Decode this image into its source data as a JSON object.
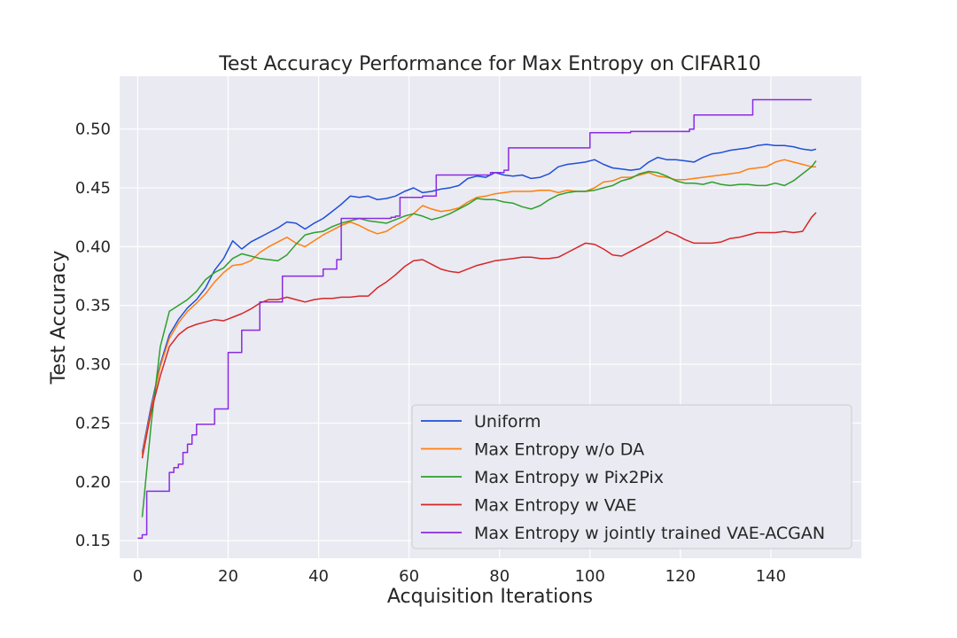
{
  "chart_data": {
    "type": "line",
    "title": "Test Accuracy Performance for Max Entropy on CIFAR10",
    "xlabel": "Acquisition Iterations",
    "ylabel": "Test Accuracy",
    "xlim": [
      -4,
      160
    ],
    "ylim": [
      0.135,
      0.545
    ],
    "xticks": [
      0,
      20,
      40,
      60,
      80,
      100,
      120,
      140
    ],
    "yticks": [
      0.15,
      0.2,
      0.25,
      0.3,
      0.35,
      0.4,
      0.45,
      0.5
    ],
    "grid": true,
    "background": "#eaeaf2",
    "legend_position": "lower-right",
    "series": [
      {
        "name": "Uniform",
        "color": "#1f4fd8",
        "step": false,
        "x": [
          1,
          3,
          5,
          7,
          9,
          11,
          13,
          15,
          17,
          19,
          21,
          23,
          25,
          27,
          29,
          31,
          33,
          35,
          37,
          39,
          41,
          43,
          45,
          47,
          49,
          51,
          53,
          55,
          57,
          59,
          61,
          63,
          65,
          67,
          69,
          71,
          73,
          75,
          77,
          79,
          81,
          83,
          85,
          87,
          89,
          91,
          93,
          95,
          97,
          99,
          101,
          103,
          105,
          107,
          109,
          111,
          113,
          115,
          117,
          119,
          121,
          123,
          125,
          127,
          129,
          131,
          133,
          135,
          137,
          139,
          141,
          143,
          145,
          147,
          149,
          150
        ],
        "y": [
          0.225,
          0.265,
          0.3,
          0.325,
          0.338,
          0.348,
          0.355,
          0.365,
          0.38,
          0.39,
          0.405,
          0.398,
          0.404,
          0.408,
          0.412,
          0.416,
          0.421,
          0.42,
          0.415,
          0.42,
          0.424,
          0.43,
          0.436,
          0.443,
          0.442,
          0.443,
          0.44,
          0.441,
          0.443,
          0.447,
          0.45,
          0.446,
          0.447,
          0.449,
          0.45,
          0.452,
          0.458,
          0.46,
          0.459,
          0.463,
          0.461,
          0.46,
          0.461,
          0.458,
          0.459,
          0.462,
          0.468,
          0.47,
          0.471,
          0.472,
          0.474,
          0.47,
          0.467,
          0.466,
          0.465,
          0.466,
          0.472,
          0.476,
          0.474,
          0.474,
          0.473,
          0.472,
          0.476,
          0.479,
          0.48,
          0.482,
          0.483,
          0.484,
          0.486,
          0.487,
          0.486,
          0.486,
          0.485,
          0.483,
          0.482,
          0.483
        ]
      },
      {
        "name": "Max Entropy w/o DA",
        "color": "#ff7f0e",
        "step": false,
        "x": [
          1,
          3,
          5,
          7,
          9,
          11,
          13,
          15,
          17,
          19,
          21,
          23,
          25,
          27,
          29,
          31,
          33,
          35,
          37,
          39,
          41,
          43,
          45,
          47,
          49,
          51,
          53,
          55,
          57,
          59,
          61,
          63,
          65,
          67,
          69,
          71,
          73,
          75,
          77,
          79,
          81,
          83,
          85,
          87,
          89,
          91,
          93,
          95,
          97,
          99,
          101,
          103,
          105,
          107,
          109,
          111,
          113,
          115,
          117,
          119,
          121,
          123,
          125,
          127,
          129,
          131,
          133,
          135,
          137,
          139,
          141,
          143,
          145,
          147,
          149,
          150
        ],
        "y": [
          0.223,
          0.262,
          0.298,
          0.322,
          0.335,
          0.345,
          0.352,
          0.36,
          0.37,
          0.378,
          0.384,
          0.385,
          0.388,
          0.395,
          0.4,
          0.404,
          0.408,
          0.403,
          0.4,
          0.405,
          0.41,
          0.414,
          0.418,
          0.421,
          0.418,
          0.414,
          0.411,
          0.413,
          0.418,
          0.422,
          0.428,
          0.435,
          0.432,
          0.43,
          0.431,
          0.433,
          0.438,
          0.442,
          0.443,
          0.445,
          0.446,
          0.447,
          0.447,
          0.447,
          0.448,
          0.448,
          0.446,
          0.448,
          0.447,
          0.447,
          0.45,
          0.455,
          0.456,
          0.459,
          0.459,
          0.461,
          0.463,
          0.46,
          0.459,
          0.457,
          0.457,
          0.458,
          0.459,
          0.46,
          0.461,
          0.462,
          0.463,
          0.466,
          0.467,
          0.468,
          0.472,
          0.474,
          0.472,
          0.47,
          0.468,
          0.468
        ]
      },
      {
        "name": "Max Entropy w Pix2Pix",
        "color": "#2ca02c",
        "step": false,
        "x": [
          1,
          3,
          5,
          7,
          9,
          11,
          13,
          15,
          17,
          19,
          21,
          23,
          25,
          27,
          29,
          31,
          33,
          35,
          37,
          39,
          41,
          43,
          45,
          47,
          49,
          51,
          53,
          55,
          57,
          59,
          61,
          63,
          65,
          67,
          69,
          71,
          73,
          75,
          77,
          79,
          81,
          83,
          85,
          87,
          89,
          91,
          93,
          95,
          97,
          99,
          101,
          103,
          105,
          107,
          109,
          111,
          113,
          115,
          117,
          119,
          121,
          123,
          125,
          127,
          129,
          131,
          133,
          135,
          137,
          139,
          141,
          143,
          145,
          147,
          149,
          150
        ],
        "y": [
          0.17,
          0.25,
          0.315,
          0.345,
          0.35,
          0.355,
          0.362,
          0.372,
          0.378,
          0.382,
          0.39,
          0.394,
          0.392,
          0.39,
          0.389,
          0.388,
          0.393,
          0.402,
          0.41,
          0.412,
          0.413,
          0.417,
          0.42,
          0.422,
          0.424,
          0.422,
          0.421,
          0.42,
          0.423,
          0.426,
          0.428,
          0.426,
          0.423,
          0.425,
          0.428,
          0.432,
          0.436,
          0.441,
          0.44,
          0.44,
          0.438,
          0.437,
          0.434,
          0.432,
          0.435,
          0.44,
          0.444,
          0.446,
          0.447,
          0.447,
          0.448,
          0.45,
          0.452,
          0.456,
          0.458,
          0.462,
          0.464,
          0.463,
          0.46,
          0.456,
          0.454,
          0.454,
          0.453,
          0.455,
          0.453,
          0.452,
          0.453,
          0.453,
          0.452,
          0.452,
          0.454,
          0.452,
          0.456,
          0.462,
          0.468,
          0.473
        ]
      },
      {
        "name": "Max Entropy w VAE",
        "color": "#d62728",
        "step": false,
        "x": [
          1,
          3,
          5,
          7,
          9,
          11,
          13,
          15,
          17,
          19,
          21,
          23,
          25,
          27,
          29,
          31,
          33,
          35,
          37,
          39,
          41,
          43,
          45,
          47,
          49,
          51,
          53,
          55,
          57,
          59,
          61,
          63,
          65,
          67,
          69,
          71,
          73,
          75,
          77,
          79,
          81,
          83,
          85,
          87,
          89,
          91,
          93,
          95,
          97,
          99,
          101,
          103,
          105,
          107,
          109,
          111,
          113,
          115,
          117,
          119,
          121,
          123,
          125,
          127,
          129,
          131,
          133,
          135,
          137,
          139,
          141,
          143,
          145,
          147,
          149,
          150
        ],
        "y": [
          0.22,
          0.26,
          0.29,
          0.315,
          0.325,
          0.331,
          0.334,
          0.336,
          0.338,
          0.337,
          0.34,
          0.343,
          0.347,
          0.352,
          0.355,
          0.355,
          0.357,
          0.355,
          0.353,
          0.355,
          0.356,
          0.356,
          0.357,
          0.357,
          0.358,
          0.358,
          0.365,
          0.37,
          0.376,
          0.383,
          0.388,
          0.389,
          0.385,
          0.381,
          0.379,
          0.378,
          0.381,
          0.384,
          0.386,
          0.388,
          0.389,
          0.39,
          0.391,
          0.391,
          0.39,
          0.39,
          0.391,
          0.395,
          0.399,
          0.403,
          0.402,
          0.398,
          0.393,
          0.392,
          0.396,
          0.4,
          0.404,
          0.408,
          0.413,
          0.41,
          0.406,
          0.403,
          0.403,
          0.403,
          0.404,
          0.407,
          0.408,
          0.41,
          0.412,
          0.412,
          0.412,
          0.413,
          0.412,
          0.413,
          0.425,
          0.429
        ]
      },
      {
        "name": "Max Entropy w jointly trained VAE-ACGAN",
        "color": "#8a2be2",
        "step": true,
        "x": [
          0,
          1,
          2,
          6,
          7,
          8,
          9,
          10,
          11,
          12,
          13,
          16,
          17,
          19,
          20,
          22,
          23,
          26,
          27,
          31,
          32,
          40,
          41,
          44,
          45,
          55,
          56,
          57,
          58,
          62,
          63,
          65,
          66,
          77,
          78,
          81,
          82,
          99,
          100,
          108,
          109,
          121,
          122,
          123,
          124,
          135,
          136,
          149
        ],
        "y": [
          0.152,
          0.155,
          0.192,
          0.192,
          0.208,
          0.212,
          0.215,
          0.225,
          0.232,
          0.24,
          0.249,
          0.249,
          0.262,
          0.262,
          0.31,
          0.31,
          0.329,
          0.329,
          0.353,
          0.353,
          0.375,
          0.375,
          0.381,
          0.389,
          0.424,
          0.424,
          0.425,
          0.426,
          0.442,
          0.442,
          0.443,
          0.443,
          0.461,
          0.461,
          0.463,
          0.465,
          0.484,
          0.484,
          0.497,
          0.497,
          0.498,
          0.498,
          0.5,
          0.512,
          0.512,
          0.512,
          0.525,
          0.525
        ]
      }
    ]
  }
}
